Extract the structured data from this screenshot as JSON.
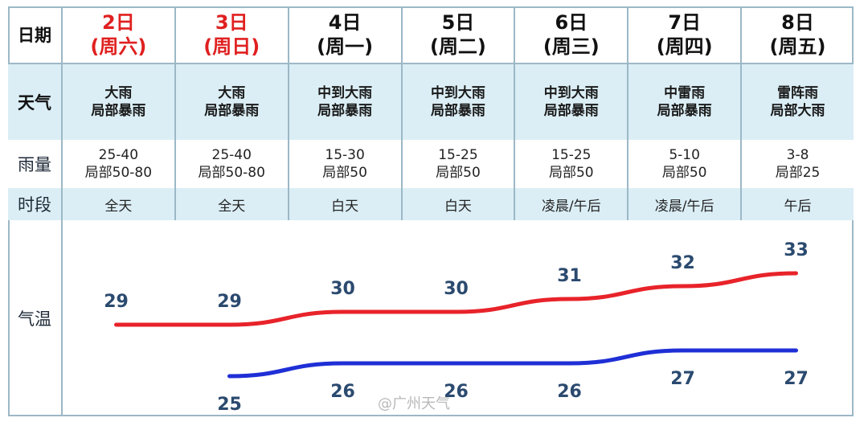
{
  "labels": {
    "date": "日期",
    "weather": "天气",
    "rain": "雨量",
    "period": "时段",
    "temp": "气温"
  },
  "days": [
    {
      "day": "2日",
      "week": "(周六)",
      "weekend": true,
      "weather1": "大雨",
      "weather2": "局部暴雨",
      "rain1": "25-40",
      "rain2": "局部50-80",
      "period": "全天"
    },
    {
      "day": "3日",
      "week": "(周日)",
      "weekend": true,
      "weather1": "大雨",
      "weather2": "局部暴雨",
      "rain1": "25-40",
      "rain2": "局部50-80",
      "period": "全天"
    },
    {
      "day": "4日",
      "week": "(周一)",
      "weekend": false,
      "weather1": "中到大雨",
      "weather2": "局部暴雨",
      "rain1": "15-30",
      "rain2": "局部50",
      "period": "白天"
    },
    {
      "day": "5日",
      "week": "(周二)",
      "weekend": false,
      "weather1": "中到大雨",
      "weather2": "局部暴雨",
      "rain1": "15-25",
      "rain2": "局部50",
      "period": "白天"
    },
    {
      "day": "6日",
      "week": "(周三)",
      "weekend": false,
      "weather1": "中到大雨",
      "weather2": "局部暴雨",
      "rain1": "15-25",
      "rain2": "局部50",
      "period": "凌晨/午后"
    },
    {
      "day": "7日",
      "week": "(周四)",
      "weekend": false,
      "weather1": "中雷雨",
      "weather2": "局部暴雨",
      "rain1": "5-10",
      "rain2": "局部50",
      "period": "凌晨/午后"
    },
    {
      "day": "8日",
      "week": "(周五)",
      "weekend": false,
      "weather1": "雷阵雨",
      "weather2": "局部大雨",
      "rain1": "3-8",
      "rain2": "局部25",
      "period": "午后"
    }
  ],
  "chart_data": {
    "type": "line",
    "categories": [
      "2日",
      "3日",
      "4日",
      "5日",
      "6日",
      "7日",
      "8日"
    ],
    "series": [
      {
        "role": "high",
        "color": "#e8232a",
        "values": [
          29,
          29,
          30,
          30,
          31,
          32,
          33
        ],
        "label_color": "#2b4a6f"
      },
      {
        "role": "low",
        "color": "#1f2fd6",
        "values": [
          null,
          25,
          26,
          26,
          26,
          27,
          27
        ],
        "label_color": "#2b4a6f"
      }
    ],
    "ylim": [
      24,
      34
    ],
    "grid": false
  },
  "watermark": "@广州天气"
}
